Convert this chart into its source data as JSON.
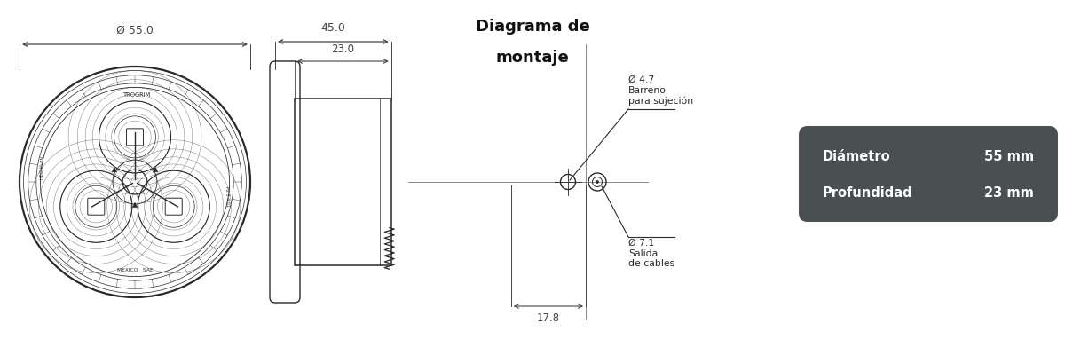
{
  "bg_color": "#ffffff",
  "line_color": "#2a2a2a",
  "dim_color": "#444444",
  "info_box_color": "#4a4f52",
  "info_text_color": "#ffffff",
  "diameter_label": "Ø 55.0",
  "depth_label": "23.0",
  "width_label": "45.0",
  "dim_diameter": "Diámetro",
  "dim_diameter_val": "55 mm",
  "dim_depth": "Profundidad",
  "dim_depth_val": "23 mm",
  "hole_label": "Ø 4.7\nBarreno\npara sujeción",
  "cable_label": "Ø 7.1\nSalida\nde cables",
  "dist_label": "17.8"
}
